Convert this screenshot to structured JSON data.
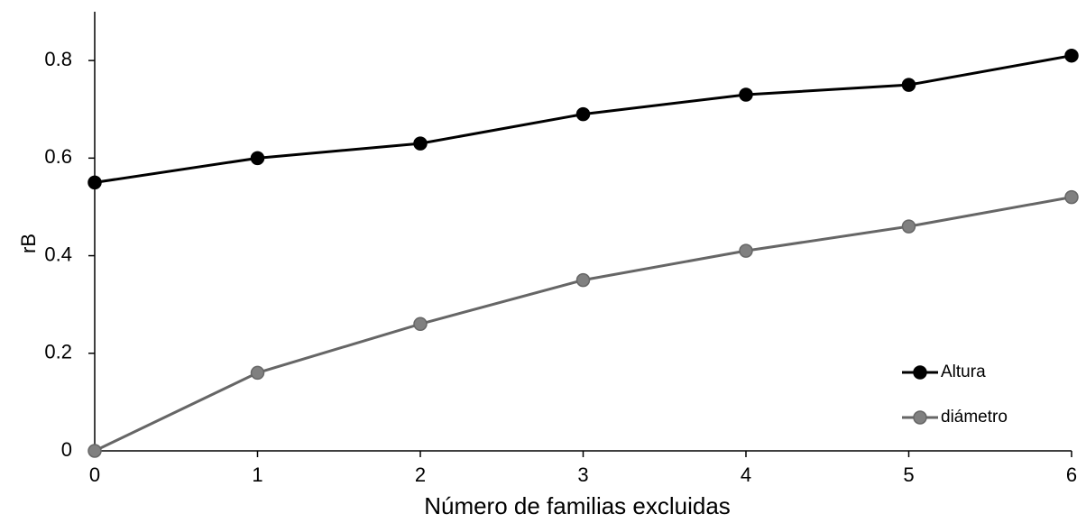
{
  "chart_data": {
    "type": "line",
    "x_label": "Número de familias excluidas",
    "y_label": "rB",
    "x": [
      0,
      1,
      2,
      3,
      4,
      5,
      6
    ],
    "series": [
      {
        "name": "Altura",
        "color": "#000000",
        "values": [
          0.55,
          0.6,
          0.63,
          0.69,
          0.73,
          0.75,
          0.81
        ]
      },
      {
        "name": "diámetro",
        "color": "#666666",
        "values": [
          0,
          0.16,
          0.26,
          0.35,
          0.41,
          0.46,
          0.52
        ]
      }
    ],
    "xlim": [
      0,
      6
    ],
    "xticks": [
      0,
      1,
      2,
      3,
      4,
      5,
      6
    ],
    "ylim": [
      0,
      0.9
    ],
    "yticks": [
      0,
      0.2,
      0.4,
      0.6,
      0.8
    ],
    "grid": false,
    "legend": "lower right"
  }
}
